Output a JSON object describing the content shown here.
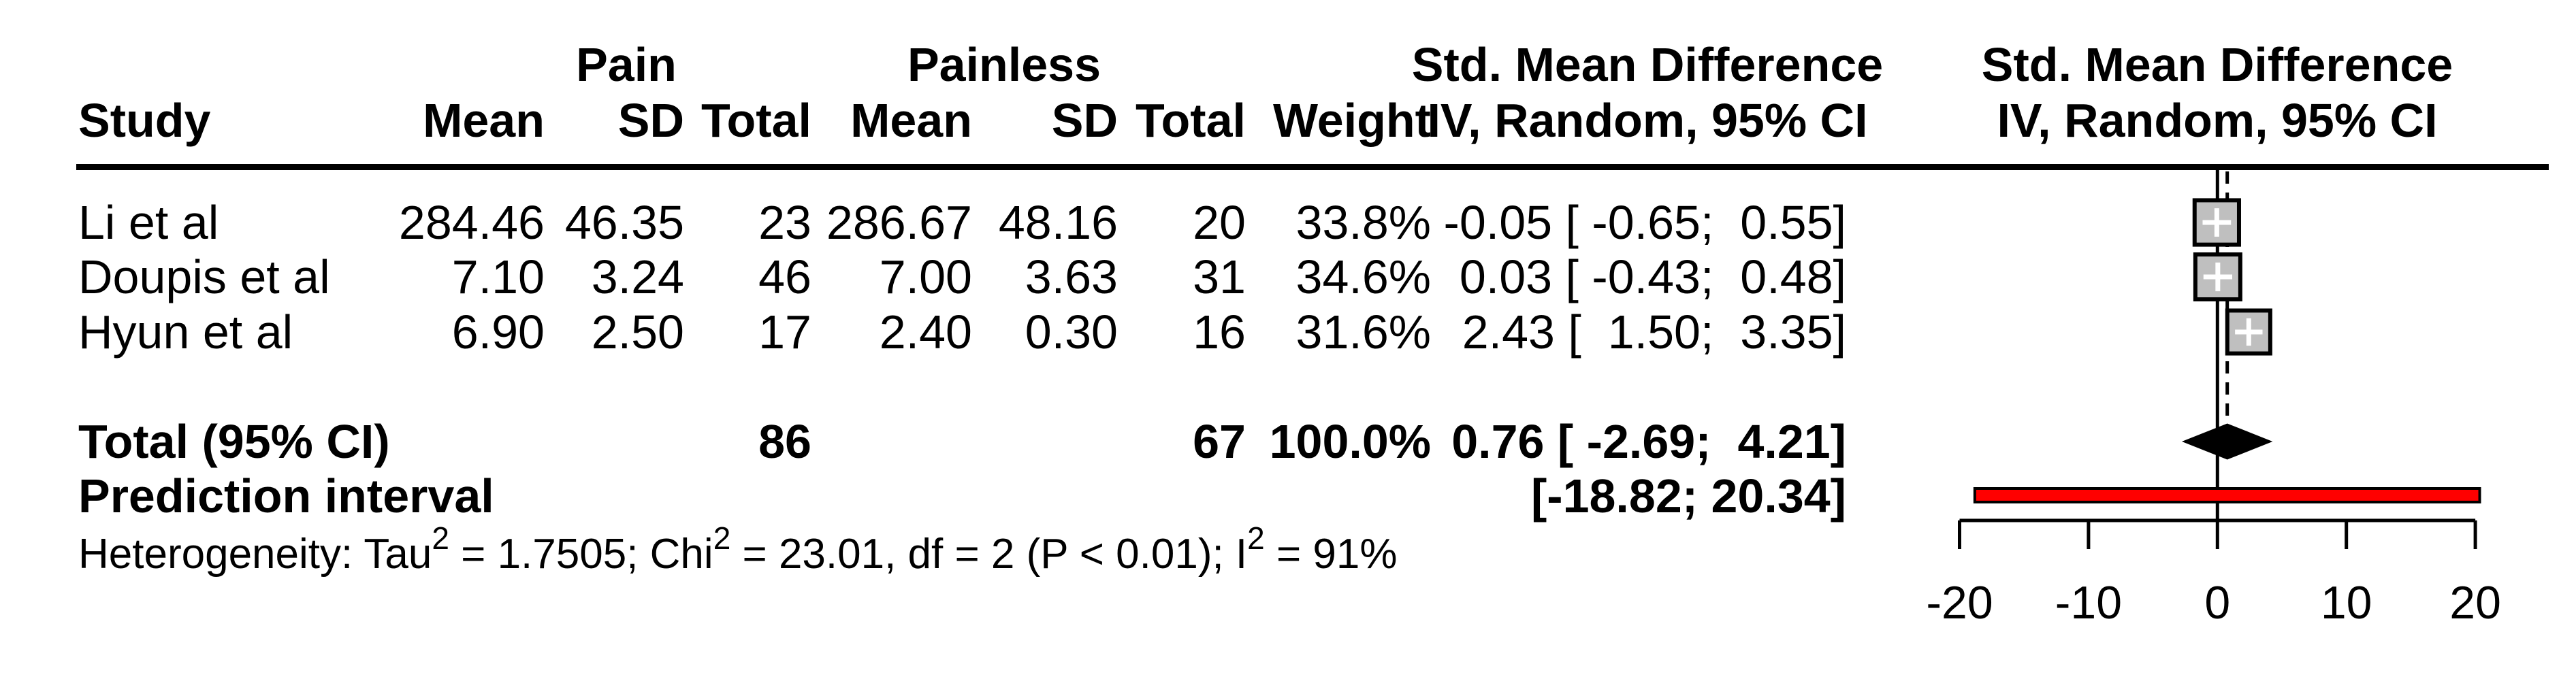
{
  "header": {
    "col1_label": "Study",
    "group_pain": "Pain",
    "group_painless": "Painless",
    "smd_title_text": "Std. Mean Difference",
    "smd_model_text": "IV, Random, 95% CI",
    "smd_title_plot": "Std. Mean Difference",
    "smd_model_plot": "IV, Random, 95% CI",
    "mean_label": "Mean",
    "sd_label": "SD",
    "total_label": "Total",
    "weight_label": "Weight"
  },
  "chart_data": {
    "type": "forest",
    "x_axis": {
      "min": -20,
      "max": 20,
      "ticks": [
        -20,
        -10,
        0,
        10,
        20
      ]
    },
    "null_line_x": 0,
    "pooled_effect_x": 0.76,
    "studies": [
      {
        "label": "Li et al",
        "pain_mean": "284.46",
        "pain_sd": "46.35",
        "pain_total": "23",
        "painless_mean": "286.67",
        "painless_sd": "48.16",
        "painless_total": "20",
        "weight": "33.8%",
        "weight_value": 33.8,
        "ci_label": "-0.05 [ -0.65;  0.55]",
        "smd": -0.05,
        "ci_low": -0.65,
        "ci_high": 0.55
      },
      {
        "label": "Doupis et al",
        "pain_mean": "7.10",
        "pain_sd": "3.24",
        "pain_total": "46",
        "painless_mean": "7.00",
        "painless_sd": "3.63",
        "painless_total": "31",
        "weight": "34.6%",
        "weight_value": 34.6,
        "ci_label": "0.03 [ -0.43;  0.48]",
        "smd": 0.03,
        "ci_low": -0.43,
        "ci_high": 0.48
      },
      {
        "label": "Hyun et al",
        "pain_mean": "6.90",
        "pain_sd": "2.50",
        "pain_total": "17",
        "painless_mean": "2.40",
        "painless_sd": "0.30",
        "painless_total": "16",
        "weight": "31.6%",
        "weight_value": 31.6,
        "ci_label": "2.43 [  1.50;  3.35]",
        "smd": 2.43,
        "ci_low": 1.5,
        "ci_high": 3.35
      }
    ],
    "total": {
      "label": "Total (95% CI)",
      "pain_total": "86",
      "painless_total": "67",
      "weight": "100.0%",
      "ci_label": "0.76 [ -2.69;  4.21]",
      "smd": 0.76,
      "ci_low": -2.69,
      "ci_high": 4.21
    },
    "prediction_interval": {
      "label": "Prediction interval",
      "ci_label": "[-18.82; 20.34]",
      "low": -18.82,
      "high": 20.34
    },
    "heterogeneity": {
      "segments": [
        {
          "text": "Heterogeneity: Tau"
        },
        {
          "sup": "2"
        },
        {
          "text": " = 1.7505; Chi"
        },
        {
          "sup": "2"
        },
        {
          "text": " = 23.01, df = 2 (P < 0.01); I"
        },
        {
          "sup": "2"
        },
        {
          "text": " = 91%"
        }
      ]
    },
    "colors": {
      "square_fill": "#bfbfbf",
      "square_border": "#000000",
      "square_plus": "#ffffff",
      "diamond_fill": "#000000",
      "prediction_bar_fill": "#ff0000",
      "prediction_bar_border": "#000000",
      "line_color": "#000000",
      "text_color": "#000000",
      "background": "#ffffff"
    }
  }
}
